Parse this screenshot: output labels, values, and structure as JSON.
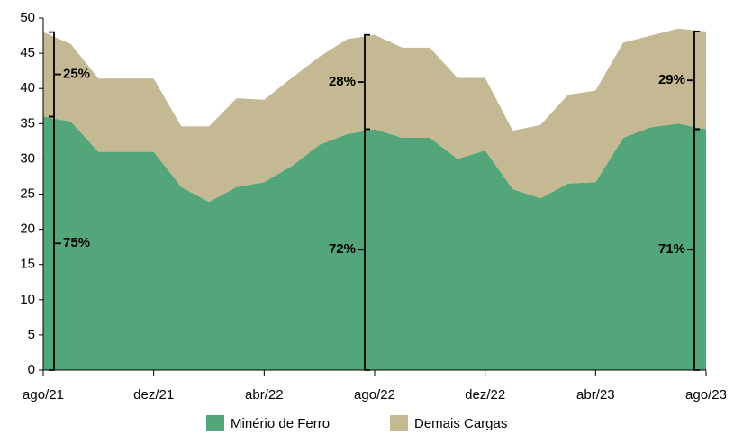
{
  "chart_data": {
    "type": "stacked_area",
    "categories": [
      "ago/21",
      null,
      null,
      null,
      "dez/21",
      null,
      null,
      null,
      "abr/22",
      null,
      null,
      null,
      "ago/22",
      null,
      null,
      null,
      "dez/22",
      null,
      null,
      null,
      "abr/23",
      null,
      null,
      null,
      "ago/23"
    ],
    "series": [
      {
        "name": "Minério de Ferro",
        "color": "#52a67a",
        "values": [
          36,
          35.3,
          31,
          31,
          31,
          26,
          23.9,
          26,
          26.7,
          29,
          32,
          33.5,
          34.2,
          33,
          33,
          30,
          31.2,
          25.7,
          24.4,
          26.5,
          26.7,
          33,
          34.5,
          35,
          34.2
        ]
      },
      {
        "name": "Demais Cargas",
        "color": "#c4b993",
        "values": [
          12,
          11,
          10.4,
          10.4,
          10.4,
          8.6,
          10.7,
          12.6,
          11.7,
          12.5,
          12.5,
          13.5,
          13.4,
          12.8,
          12.8,
          11.5,
          10.3,
          8.3,
          10.4,
          12.6,
          13,
          13.5,
          13,
          13.5,
          13.9
        ]
      }
    ],
    "annotations": [
      "25%",
      "75%",
      "28%",
      "72%",
      "29%",
      "71%"
    ],
    "ylim": [
      0,
      50
    ],
    "yticks": [
      0,
      5,
      10,
      15,
      20,
      25,
      30,
      35,
      40,
      45,
      50
    ]
  }
}
